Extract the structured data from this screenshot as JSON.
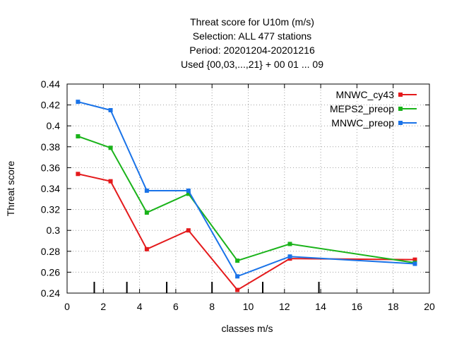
{
  "chart_data": {
    "type": "line",
    "title_lines": [
      "Threat score  for U10m (m/s)",
      "Selection: ALL    477 stations",
      "Period: 20201204-20201216",
      "Used {00,03,...,21} + 00 01 ... 09"
    ],
    "xlabel": "classes m/s",
    "ylabel": "Threat score",
    "xlim": [
      0,
      20
    ],
    "ylim": [
      0.24,
      0.44
    ],
    "xticks": [
      0,
      2,
      4,
      6,
      8,
      10,
      12,
      14,
      16,
      18,
      20
    ],
    "yticks": [
      0.24,
      0.26,
      0.28,
      0.3,
      0.32,
      0.34,
      0.36,
      0.38,
      0.4,
      0.42,
      0.44
    ],
    "ytick_labels": [
      "0.24",
      "0.26",
      "0.28",
      "0.3",
      "0.32",
      "0.34",
      "0.36",
      "0.38",
      "0.4",
      "0.42",
      "0.44"
    ],
    "grid": true,
    "legend_position": "top-right",
    "class_boundaries": [
      1.5,
      3.3,
      5.5,
      8.0,
      10.8,
      13.9
    ],
    "series": [
      {
        "name": "MNWC_cy43",
        "color": "#e41a1c",
        "x": [
          0.6,
          2.4,
          4.4,
          6.7,
          9.4,
          12.3,
          19.2
        ],
        "y": [
          0.354,
          0.347,
          0.282,
          0.3,
          0.243,
          0.273,
          0.272
        ]
      },
      {
        "name": "MEPS2_preop",
        "color": "#1ab31a",
        "x": [
          0.6,
          2.4,
          4.4,
          6.7,
          9.4,
          12.3,
          19.2
        ],
        "y": [
          0.39,
          0.379,
          0.317,
          0.335,
          0.271,
          0.287,
          0.269
        ]
      },
      {
        "name": "MNWC_preop",
        "color": "#1a73e8",
        "x": [
          0.6,
          2.4,
          4.4,
          6.7,
          9.4,
          12.3,
          19.2
        ],
        "y": [
          0.423,
          0.415,
          0.338,
          0.338,
          0.256,
          0.275,
          0.268
        ]
      }
    ]
  }
}
